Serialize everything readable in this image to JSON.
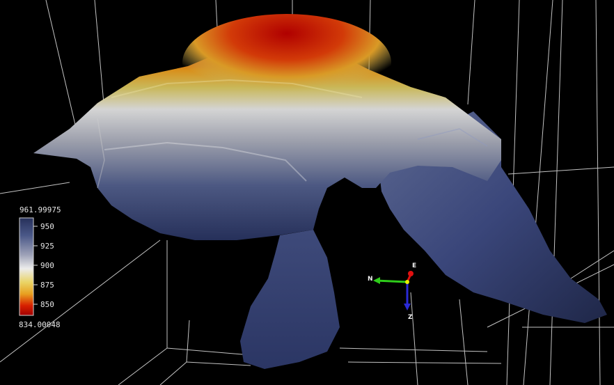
{
  "viewer": {
    "background": "#000000",
    "grid_color": "#d9d9d9"
  },
  "colorbar": {
    "max_label": "961.99975",
    "min_label": "834.00048",
    "ticks": [
      "950",
      "925",
      "900",
      "875",
      "850"
    ],
    "stops": [
      "#26305a",
      "#3a4a80",
      "#8c93ad",
      "#e9e9e9",
      "#e9d060",
      "#e8a020",
      "#d82000",
      "#a80000"
    ]
  },
  "orientation_widget": {
    "n_label": "N",
    "e_label": "E",
    "z_label": "Z",
    "n_color": "#2ecc1a",
    "e_color": "#e01010",
    "z_color": "#2a2ad6",
    "origin_color": "#e6f000"
  },
  "surface": {
    "peak_color": "#a80000",
    "mid_color": "#d8d8d8",
    "low_color": "#2d3a68"
  }
}
